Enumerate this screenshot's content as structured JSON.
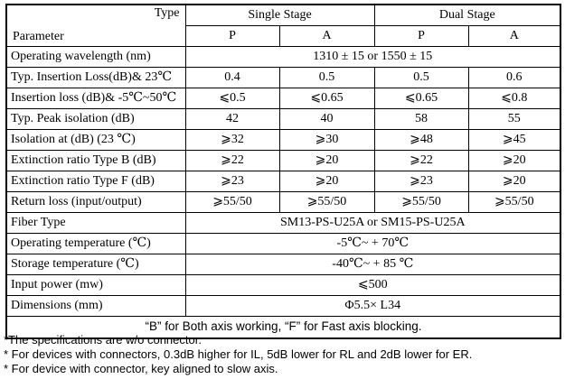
{
  "table": {
    "corner": {
      "type_label": "Type",
      "parameter_label": "Parameter"
    },
    "column_groups": [
      {
        "label": "Single Stage"
      },
      {
        "label": "Dual Stage"
      }
    ],
    "sub_columns": [
      "P",
      "A",
      "P",
      "A"
    ],
    "rows": [
      {
        "param": "Operating wavelength (nm)",
        "merged": "1310 ± 15 or 1550 ± 15"
      },
      {
        "param": "Typ. Insertion Loss(dB)& 23℃",
        "values": [
          "0.4",
          "0.5",
          "0.5",
          "0.6"
        ]
      },
      {
        "param": "Insertion loss (dB)& -5℃~50℃",
        "values": [
          "⩽0.5",
          "⩽0.65",
          "⩽0.65",
          "⩽0.8"
        ]
      },
      {
        "param": "Typ. Peak isolation (dB)",
        "values": [
          "42",
          "40",
          "58",
          "55"
        ]
      },
      {
        "param": "Isolation at (dB) (23 ℃)",
        "values": [
          "⩾32",
          "⩾30",
          "⩾48",
          "⩾45"
        ]
      },
      {
        "param": "Extinction ratio Type B (dB)",
        "values": [
          "⩾22",
          "⩾20",
          "⩾22",
          "⩾20"
        ]
      },
      {
        "param": "Extinction ratio Type F (dB)",
        "values": [
          "⩾23",
          "⩾20",
          "⩾23",
          "⩾20"
        ]
      },
      {
        "param": "Return loss (input/output)",
        "values": [
          "⩾55/50",
          "⩾55/50",
          "⩾55/50",
          "⩾55/50"
        ]
      },
      {
        "param": "Fiber Type",
        "merged": "SM13-PS-U25A or SM15-PS-U25A"
      },
      {
        "param": "Operating temperature (℃)",
        "merged": "-5℃~ + 70℃"
      },
      {
        "param": "Storage temperature (℃)",
        "merged": "-40℃~ + 85 ℃"
      },
      {
        "param": "Input power (mw)",
        "merged": "⩽500"
      },
      {
        "param": "Dimensions (mm)",
        "merged": "Φ5.5× L34"
      }
    ],
    "note": "“B” for Both axis working, “F” for Fast axis blocking."
  },
  "footnotes": [
    "*The specifications are w/o connector.",
    "* For devices with connectors, 0.3dB higher for IL, 5dB lower for RL and 2dB lower for ER.",
    "* For device with connector, key aligned to slow axis."
  ]
}
